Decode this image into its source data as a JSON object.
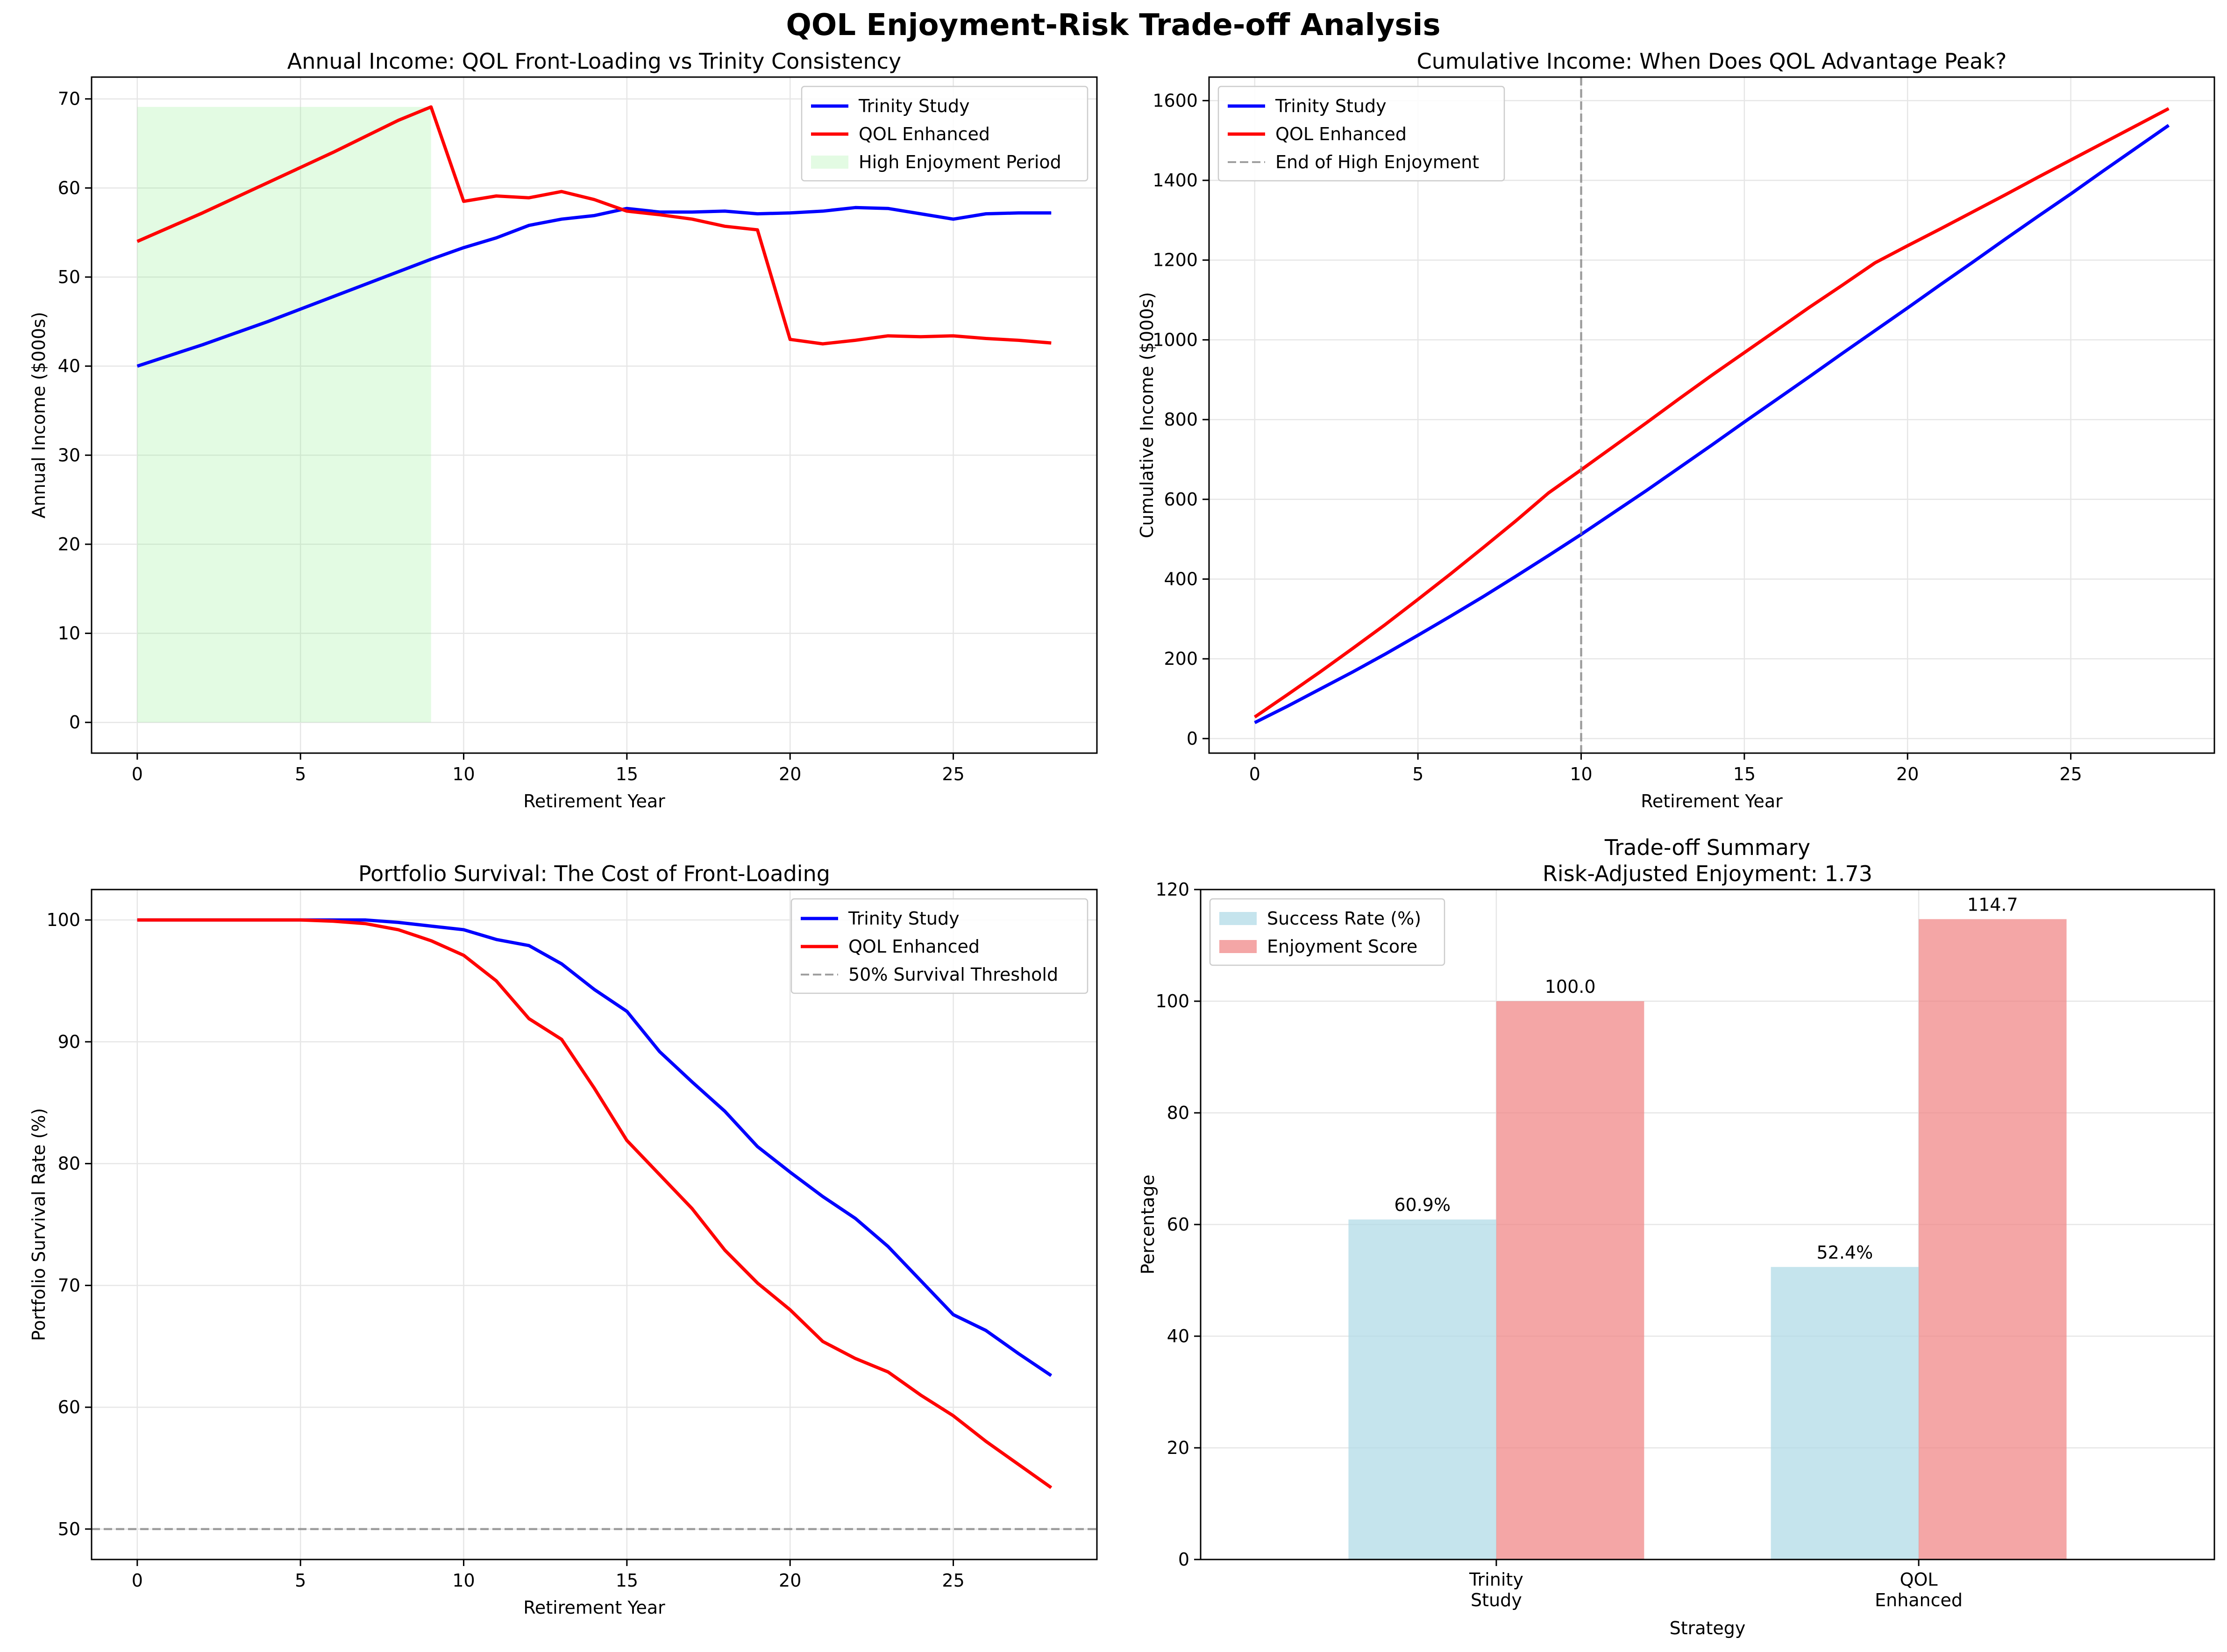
{
  "figure": {
    "title": "QOL Enjoyment-Risk Trade-off Analysis"
  },
  "colors": {
    "trinity": "#0000ff",
    "qol": "#ff0000",
    "highlight": "#90ee90",
    "threshold": "#808080",
    "success_bar": "#add8e6",
    "enjoyment_bar": "#f08080"
  },
  "chart_data": [
    {
      "id": "annual",
      "type": "line",
      "title": "Annual Income: QOL Front-Loading vs Trinity Consistency",
      "xlabel": "Retirement Year",
      "ylabel": "Annual Income ($000s)",
      "xlim": [
        -1.4,
        29.4
      ],
      "ylim": [
        -3.45,
        72.45
      ],
      "xticks": [
        0,
        5,
        10,
        15,
        20,
        25
      ],
      "yticks": [
        0,
        10,
        20,
        30,
        40,
        50,
        60,
        70
      ],
      "grid": true,
      "legend_position": "top-right",
      "x": [
        0,
        1,
        2,
        3,
        4,
        5,
        6,
        7,
        8,
        9,
        10,
        11,
        12,
        13,
        14,
        15,
        16,
        17,
        18,
        19,
        20,
        21,
        22,
        23,
        24,
        25,
        26,
        27,
        28
      ],
      "series": [
        {
          "name": "Trinity Study",
          "color_key": "trinity",
          "values": [
            40.0,
            41.2,
            42.4,
            43.7,
            45.0,
            46.4,
            47.8,
            49.2,
            50.6,
            52.0,
            53.3,
            54.4,
            55.8,
            56.5,
            56.9,
            57.7,
            57.3,
            57.3,
            57.4,
            57.1,
            57.2,
            57.4,
            57.8,
            57.7,
            57.1,
            56.5,
            57.1,
            57.2,
            57.2
          ]
        },
        {
          "name": "QOL Enhanced",
          "color_key": "qol",
          "values": [
            54.0,
            55.6,
            57.2,
            58.9,
            60.6,
            62.3,
            64.0,
            65.8,
            67.6,
            69.1,
            58.5,
            59.1,
            58.9,
            59.6,
            58.7,
            57.4,
            57.0,
            56.5,
            55.7,
            55.3,
            43.0,
            42.5,
            42.9,
            43.4,
            43.3,
            43.4,
            43.1,
            42.9,
            42.6
          ]
        }
      ],
      "shaded_regions": [
        {
          "name": "High Enjoyment Period",
          "color_key": "highlight",
          "x_range": [
            0,
            9
          ],
          "y_range": [
            0,
            69.1
          ]
        }
      ]
    },
    {
      "id": "cumulative",
      "type": "line",
      "title": "Cumulative Income: When Does QOL Advantage Peak?",
      "xlabel": "Retirement Year",
      "ylabel": "Cumulative Income ($000s)",
      "xlim": [
        -1.4,
        29.4
      ],
      "ylim": [
        -36.5,
        1659
      ],
      "xticks": [
        0,
        5,
        10,
        15,
        20,
        25
      ],
      "yticks": [
        0,
        200,
        400,
        600,
        800,
        1000,
        1200,
        1400,
        1600
      ],
      "grid": true,
      "legend_position": "top-left",
      "x": [
        0,
        1,
        2,
        3,
        4,
        5,
        6,
        7,
        8,
        9,
        10,
        11,
        12,
        13,
        14,
        15,
        16,
        17,
        18,
        19,
        20,
        21,
        22,
        23,
        24,
        25,
        26,
        27,
        28
      ],
      "series": [
        {
          "name": "Trinity Study",
          "color_key": "trinity",
          "values": [
            40,
            81,
            124,
            167,
            212,
            259,
            307,
            356,
            407,
            459,
            512,
            567,
            622,
            679,
            736,
            794,
            851,
            908,
            966,
            1023,
            1080,
            1138,
            1195,
            1253,
            1310,
            1366,
            1424,
            1481,
            1538
          ]
        },
        {
          "name": "QOL Enhanced",
          "color_key": "qol",
          "values": [
            54,
            110,
            167,
            226,
            286,
            349,
            413,
            479,
            546,
            616,
            674,
            733,
            792,
            852,
            911,
            968,
            1025,
            1082,
            1137,
            1193,
            1236,
            1278,
            1321,
            1364,
            1408,
            1451,
            1494,
            1537,
            1580
          ]
        }
      ],
      "reference_lines": [
        {
          "name": "End of High Enjoyment",
          "orientation": "vertical",
          "value": 10,
          "color_key": "threshold",
          "dashed": true
        }
      ]
    },
    {
      "id": "survival",
      "type": "line",
      "title": "Portfolio Survival: The Cost of Front-Loading",
      "xlabel": "Retirement Year",
      "ylabel": "Portfolio Survival Rate (%)",
      "xlim": [
        -1.4,
        29.4
      ],
      "ylim": [
        47.5,
        102.5
      ],
      "xticks": [
        0,
        5,
        10,
        15,
        20,
        25
      ],
      "yticks": [
        50,
        60,
        70,
        80,
        90,
        100
      ],
      "grid": true,
      "legend_position": "top-right",
      "x": [
        0,
        1,
        2,
        3,
        4,
        5,
        6,
        7,
        8,
        9,
        10,
        11,
        12,
        13,
        14,
        15,
        16,
        17,
        18,
        19,
        20,
        21,
        22,
        23,
        24,
        25,
        26,
        27,
        28
      ],
      "series": [
        {
          "name": "Trinity Study",
          "color_key": "trinity",
          "values": [
            100,
            100,
            100,
            100,
            100,
            100,
            100,
            100,
            99.8,
            99.5,
            99.2,
            98.4,
            97.9,
            96.4,
            94.3,
            92.5,
            89.2,
            86.7,
            84.3,
            81.4,
            79.3,
            77.3,
            75.5,
            73.2,
            70.4,
            67.6,
            66.3,
            64.4,
            62.6
          ]
        },
        {
          "name": "QOL Enhanced",
          "color_key": "qol",
          "values": [
            100,
            100,
            100,
            100,
            100,
            100,
            99.9,
            99.7,
            99.2,
            98.3,
            97.1,
            95.0,
            91.9,
            90.2,
            86.2,
            81.9,
            79.1,
            76.3,
            72.9,
            70.2,
            68.0,
            65.4,
            64.0,
            62.9,
            61.0,
            59.3,
            57.2,
            55.3,
            53.4
          ]
        }
      ],
      "reference_lines": [
        {
          "name": "50% Survival Threshold",
          "orientation": "horizontal",
          "value": 50,
          "color_key": "threshold",
          "dashed": true
        }
      ]
    },
    {
      "id": "tradeoff",
      "type": "bar",
      "title": "Trade-off Summary",
      "subtitle": "Risk-Adjusted Enjoyment: 1.73",
      "xlabel": "Strategy",
      "ylabel": "Percentage",
      "ylim": [
        0,
        120
      ],
      "yticks": [
        0,
        20,
        40,
        60,
        80,
        100,
        120
      ],
      "grid": true,
      "legend_position": "top-left",
      "categories": [
        [
          "Trinity",
          "Study"
        ],
        [
          "QOL",
          "Enhanced"
        ]
      ],
      "series": [
        {
          "name": "Success Rate (%)",
          "color_key": "success_bar",
          "values": [
            60.9,
            52.4
          ],
          "labels": [
            "60.9%",
            "52.4%"
          ]
        },
        {
          "name": "Enjoyment Score",
          "color_key": "enjoyment_bar",
          "values": [
            100.0,
            114.7
          ],
          "labels": [
            "100.0",
            "114.7"
          ]
        }
      ]
    }
  ]
}
